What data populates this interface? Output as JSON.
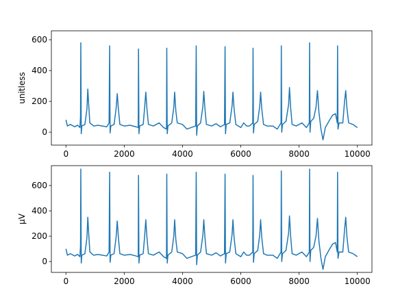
{
  "chart_data": [
    {
      "type": "line",
      "ylabel": "unitless",
      "color": "#1f77b4",
      "xlim": [
        -500,
        10500
      ],
      "xticks": [
        0,
        2000,
        4000,
        6000,
        8000,
        10000
      ],
      "ylim": [
        -84,
        658
      ],
      "yticks": [
        0,
        200,
        400,
        600
      ],
      "x": [
        0,
        50,
        150,
        300,
        400,
        480,
        500,
        510,
        525,
        545,
        650,
        720,
        750,
        780,
        820,
        950,
        1100,
        1250,
        1400,
        1480,
        1500,
        1515,
        1540,
        1650,
        1720,
        1760,
        1800,
        1850,
        2000,
        2200,
        2400,
        2480,
        2490,
        2505,
        2530,
        2650,
        2700,
        2740,
        2780,
        2830,
        3000,
        3200,
        3350,
        3450,
        3460,
        3475,
        3500,
        3630,
        3700,
        3730,
        3770,
        3820,
        4000,
        4150,
        4300,
        4450,
        4470,
        4485,
        4510,
        4620,
        4700,
        4730,
        4770,
        4820,
        5000,
        5150,
        5300,
        5440,
        5460,
        5475,
        5500,
        5620,
        5700,
        5730,
        5770,
        5830,
        6000,
        6100,
        6200,
        6300,
        6410,
        6420,
        6435,
        6460,
        6580,
        6650,
        6680,
        6720,
        6780,
        6900,
        7100,
        7250,
        7380,
        7390,
        7405,
        7430,
        7550,
        7640,
        7670,
        7710,
        7760,
        7900,
        8100,
        8250,
        8350,
        8360,
        8375,
        8400,
        8500,
        8580,
        8630,
        8680,
        8750,
        8820,
        8900,
        9050,
        9150,
        9250,
        9310,
        9320,
        9335,
        9370,
        9500,
        9560,
        9600,
        9640,
        9700,
        9850,
        10000
      ],
      "values": [
        80,
        40,
        50,
        35,
        45,
        30,
        100,
        580,
        -10,
        40,
        50,
        150,
        280,
        180,
        60,
        40,
        45,
        40,
        35,
        60,
        560,
        -5,
        40,
        50,
        150,
        250,
        150,
        50,
        40,
        45,
        35,
        30,
        540,
        -10,
        40,
        50,
        160,
        260,
        150,
        50,
        40,
        60,
        30,
        20,
        545,
        -10,
        40,
        60,
        160,
        260,
        140,
        60,
        50,
        20,
        30,
        40,
        560,
        -20,
        40,
        60,
        170,
        265,
        150,
        50,
        40,
        55,
        35,
        50,
        555,
        -10,
        50,
        60,
        170,
        260,
        150,
        50,
        30,
        60,
        40,
        40,
        60,
        545,
        -5,
        50,
        70,
        170,
        260,
        150,
        50,
        40,
        40,
        20,
        60,
        560,
        0,
        50,
        70,
        180,
        290,
        160,
        50,
        40,
        60,
        30,
        60,
        580,
        0,
        70,
        90,
        160,
        270,
        130,
        20,
        -50,
        30,
        80,
        110,
        120,
        60,
        560,
        20,
        60,
        60,
        200,
        270,
        160,
        60,
        50,
        30
      ]
    },
    {
      "type": "line",
      "ylabel": "µV",
      "color": "#1f77b4",
      "xlim": [
        -500,
        10500
      ],
      "xticks": [
        0,
        2000,
        4000,
        6000,
        8000,
        10000
      ],
      "ylim": [
        -86,
        757
      ],
      "yticks": [
        0,
        200,
        400,
        600
      ],
      "x": [
        0,
        50,
        150,
        300,
        400,
        480,
        500,
        510,
        525,
        545,
        650,
        720,
        750,
        780,
        820,
        950,
        1100,
        1250,
        1400,
        1480,
        1500,
        1515,
        1540,
        1650,
        1720,
        1760,
        1800,
        1850,
        2000,
        2200,
        2400,
        2480,
        2490,
        2505,
        2530,
        2650,
        2700,
        2740,
        2780,
        2830,
        3000,
        3200,
        3350,
        3450,
        3460,
        3475,
        3500,
        3630,
        3700,
        3730,
        3770,
        3820,
        4000,
        4150,
        4300,
        4450,
        4470,
        4485,
        4510,
        4620,
        4700,
        4730,
        4770,
        4820,
        5000,
        5150,
        5300,
        5440,
        5460,
        5475,
        5500,
        5620,
        5700,
        5730,
        5770,
        5830,
        6000,
        6100,
        6200,
        6300,
        6410,
        6420,
        6435,
        6460,
        6580,
        6650,
        6680,
        6720,
        6780,
        6900,
        7100,
        7250,
        7380,
        7390,
        7405,
        7430,
        7550,
        7640,
        7670,
        7710,
        7760,
        7900,
        8100,
        8250,
        8350,
        8360,
        8375,
        8400,
        8500,
        8580,
        8630,
        8680,
        8750,
        8820,
        8900,
        9050,
        9150,
        9250,
        9310,
        9320,
        9335,
        9370,
        9500,
        9560,
        9600,
        9640,
        9700,
        9850,
        10000
      ],
      "values": [
        100,
        50,
        62,
        44,
        56,
        38,
        125,
        730,
        -12,
        50,
        62,
        188,
        350,
        225,
        75,
        50,
        56,
        50,
        44,
        75,
        705,
        -6,
        50,
        62,
        188,
        320,
        188,
        62,
        50,
        56,
        44,
        38,
        680,
        -12,
        50,
        62,
        200,
        330,
        188,
        62,
        50,
        75,
        38,
        25,
        690,
        -12,
        50,
        75,
        200,
        330,
        175,
        75,
        62,
        25,
        38,
        50,
        705,
        -25,
        50,
        75,
        212,
        330,
        188,
        62,
        50,
        69,
        44,
        62,
        690,
        -12,
        62,
        75,
        212,
        330,
        188,
        62,
        38,
        75,
        50,
        50,
        75,
        680,
        -6,
        62,
        88,
        212,
        330,
        188,
        62,
        50,
        50,
        25,
        75,
        715,
        0,
        62,
        88,
        225,
        360,
        200,
        62,
        50,
        75,
        38,
        75,
        730,
        0,
        88,
        112,
        200,
        340,
        162,
        25,
        -62,
        38,
        100,
        138,
        150,
        75,
        705,
        25,
        75,
        75,
        250,
        350,
        200,
        75,
        62,
        38
      ]
    }
  ]
}
